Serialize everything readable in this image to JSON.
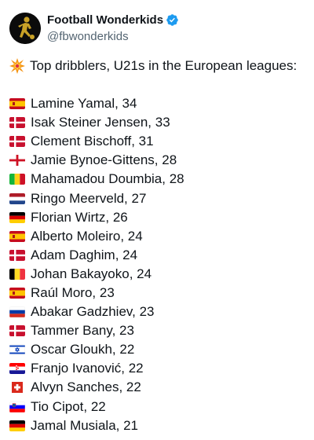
{
  "account": {
    "display_name": "Football Wonderkids",
    "handle": "@fbwonderkids",
    "verified_icon": "verified-badge-icon",
    "colors": {
      "verified": "#1d9bf0",
      "handle": "#536471"
    }
  },
  "post": {
    "headline_icon": "collision-emoji-icon",
    "headline": "Top dribblers, U21s in the European leagues:",
    "players": [
      {
        "flag": "spain",
        "text": "Lamine Yamal, 34"
      },
      {
        "flag": "denmark",
        "text": "Isak Steiner Jensen, 33"
      },
      {
        "flag": "denmark",
        "text": "Clement Bischoff, 31"
      },
      {
        "flag": "england",
        "text": "Jamie Bynoe-Gittens, 28"
      },
      {
        "flag": "mali",
        "text": "Mahamadou Doumbia, 28"
      },
      {
        "flag": "netherlands",
        "text": "Ringo Meerveld, 27"
      },
      {
        "flag": "germany",
        "text": "Florian Wirtz, 26"
      },
      {
        "flag": "spain",
        "text": "Alberto Moleiro, 24"
      },
      {
        "flag": "denmark",
        "text": "Adam Daghim, 24"
      },
      {
        "flag": "belgium",
        "text": "Johan Bakayoko, 24"
      },
      {
        "flag": "spain",
        "text": "Raúl Moro, 23"
      },
      {
        "flag": "russia",
        "text": "Abakar Gadzhiev, 23"
      },
      {
        "flag": "denmark",
        "text": "Tammer Bany, 23"
      },
      {
        "flag": "israel",
        "text": "Oscar Gloukh, 22"
      },
      {
        "flag": "croatia",
        "text": "Franjo Ivanović, 22"
      },
      {
        "flag": "switzerland",
        "text": "Alvyn Sanches, 22"
      },
      {
        "flag": "slovenia",
        "text": "Tio Cipot, 22"
      },
      {
        "flag": "germany",
        "text": "Jamal Musiala, 21"
      }
    ]
  }
}
